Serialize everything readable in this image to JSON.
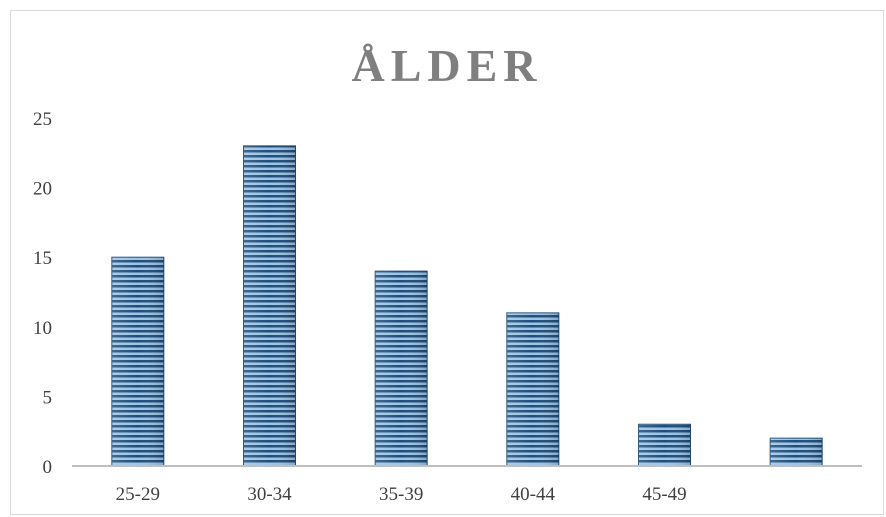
{
  "chart_data": {
    "type": "bar",
    "title": "ÅLDER",
    "xlabel": "",
    "ylabel": "",
    "categories": [
      "25-29",
      "30-34",
      "35-39",
      "40-44",
      "45-49",
      ""
    ],
    "values": [
      15,
      23,
      14,
      11,
      3,
      2
    ],
    "ylim": [
      0,
      25
    ],
    "yticks": [
      "0",
      "5",
      "10",
      "15",
      "20",
      "25"
    ],
    "grid": false,
    "legend": "none",
    "colors": {
      "bar_stripe_dark": "#1f4e79",
      "bar_stripe_light": "#9dc3e6",
      "bar_mid": "#2e75b6",
      "axis": "#bfbfbf",
      "title": "#7f7f7f"
    }
  }
}
